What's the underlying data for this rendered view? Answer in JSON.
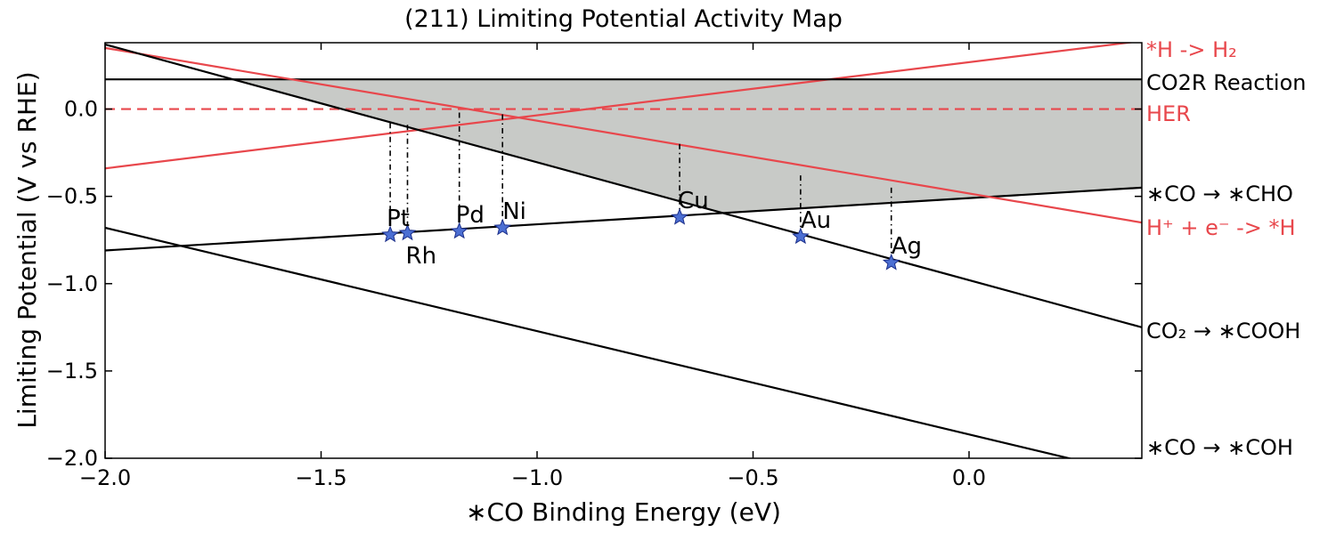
{
  "chart_data": {
    "type": "line",
    "title": "(211) Limiting Potential Activity Map",
    "xlabel": "∗CO Binding Energy (eV)",
    "ylabel": "Limiting Potential (V vs RHE)",
    "xlim": [
      -2.0,
      0.4
    ],
    "ylim": [
      -2.0,
      0.38
    ],
    "x_ticks": [
      -2.0,
      -1.5,
      -1.0,
      -0.5,
      0.0
    ],
    "x_tick_labels": [
      "−2.0",
      "−1.5",
      "−1.0",
      "−0.5",
      "0.0"
    ],
    "y_ticks": [
      -2.0,
      -1.5,
      -1.0,
      -0.5,
      0.0
    ],
    "y_tick_labels": [
      "−2.0",
      "−1.5",
      "−1.0",
      "−0.5",
      "0.0"
    ],
    "grid": false,
    "reaction_potential": 0.17,
    "lines": [
      {
        "label": "*H -> H₂",
        "color": "#e8474c",
        "style": "solid",
        "points": [
          [
            -2.0,
            -0.34
          ],
          [
            0.4,
            0.39
          ]
        ]
      },
      {
        "label": "CO2R Reaction",
        "color": "#000000",
        "style": "solid",
        "points": [
          [
            -2.0,
            0.17
          ],
          [
            0.4,
            0.17
          ]
        ]
      },
      {
        "label": "HER",
        "color": "#e8474c",
        "style": "dashed",
        "points": [
          [
            -2.0,
            0.0
          ],
          [
            0.4,
            0.0
          ]
        ]
      },
      {
        "label": "∗CO → ∗CHO",
        "color": "#000000",
        "style": "solid",
        "points": [
          [
            -2.0,
            -0.81
          ],
          [
            0.4,
            -0.45
          ]
        ]
      },
      {
        "label": "H⁺ + e⁻ -> *H",
        "color": "#e8474c",
        "style": "solid",
        "points": [
          [
            -2.0,
            0.35
          ],
          [
            0.4,
            -0.65
          ]
        ]
      },
      {
        "label": "CO₂ → ∗COOH",
        "color": "#000000",
        "style": "solid",
        "points": [
          [
            -2.0,
            0.37
          ],
          [
            0.4,
            -1.25
          ]
        ]
      },
      {
        "label": "∗CO → ∗COH",
        "color": "#000000",
        "style": "solid",
        "points": [
          [
            -2.0,
            -0.68
          ],
          [
            0.4,
            -2.1
          ]
        ]
      }
    ],
    "metals": [
      {
        "name": "Pt",
        "x": -1.34,
        "y": -0.72,
        "dashed_top": -0.08
      },
      {
        "name": "Rh",
        "x": -1.3,
        "y": -0.71,
        "dashed_top": -0.09
      },
      {
        "name": "Pd",
        "x": -1.18,
        "y": -0.7,
        "dashed_top": -0.02
      },
      {
        "name": "Ni",
        "x": -1.08,
        "y": -0.68,
        "dashed_top": -0.03
      },
      {
        "name": "Cu",
        "x": -0.67,
        "y": -0.62,
        "dashed_top": -0.2
      },
      {
        "name": "Au",
        "x": -0.39,
        "y": -0.73,
        "dashed_top": -0.38
      },
      {
        "name": "Ag",
        "x": -0.18,
        "y": -0.88,
        "dashed_top": -0.45
      }
    ],
    "colors": {
      "shade": "#c8cac7",
      "red": "#e8474c",
      "black": "#000000",
      "star": "#4c6fd3",
      "star_edge": "#1c2f8a"
    }
  }
}
